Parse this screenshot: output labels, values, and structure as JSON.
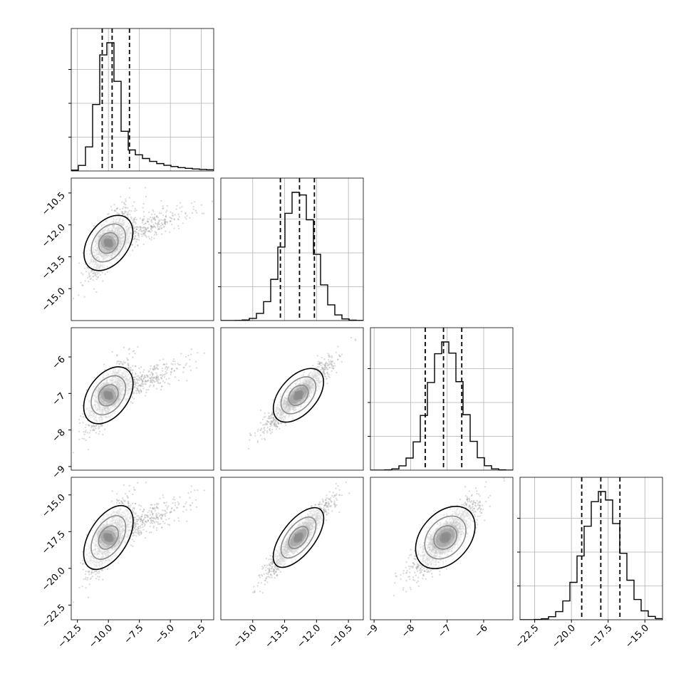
{
  "chart_data": {
    "type": "corner",
    "grid": true,
    "parameters": [
      {
        "range": [
          -13.0,
          -1.5
        ],
        "ticks": [
          -12.5,
          -10.0,
          -7.5,
          -5.0,
          -2.5
        ],
        "tick_labels": [
          "-12.5",
          "-10.0",
          "-7.5",
          "-5.0",
          "-2.5"
        ],
        "quantiles": [
          -10.5,
          -9.7,
          -8.3
        ],
        "peak": -10.0,
        "width": 0.85,
        "tail": 0.22
      },
      {
        "range": [
          -16.5,
          -9.8
        ],
        "ticks": [
          -15.0,
          -13.5,
          -12.0,
          -10.5
        ],
        "tick_labels": [
          "-15.0",
          "-13.5",
          "-12.0",
          "-10.5"
        ],
        "quantiles": [
          -13.7,
          -12.8,
          -12.1
        ],
        "peak": -12.85,
        "width": 0.75,
        "tail": 0.0
      },
      {
        "range": [
          -9.1,
          -5.2
        ],
        "ticks": [
          -9,
          -8,
          -7,
          -6
        ],
        "tick_labels": [
          "-9",
          "-8",
          "-7",
          "-6"
        ],
        "quantiles": [
          -7.6,
          -7.1,
          -6.6
        ],
        "peak": -7.05,
        "width": 0.45,
        "tail": 0.0
      },
      {
        "range": [
          -23.5,
          -13.8
        ],
        "ticks": [
          -22.5,
          -20.0,
          -17.5,
          -15.0
        ],
        "tick_labels": [
          "-22.5",
          "-20.0",
          "-17.5",
          "-15.0"
        ],
        "quantiles": [
          -19.3,
          -18.0,
          -16.7
        ],
        "peak": -17.9,
        "width": 1.25,
        "tail": 0.0
      }
    ],
    "correlations": [
      {
        "i": 1,
        "j": 0,
        "corr": 0.75
      },
      {
        "i": 2,
        "j": 0,
        "corr": 0.75
      },
      {
        "i": 2,
        "j": 1,
        "corr": 0.92
      },
      {
        "i": 3,
        "j": 0,
        "corr": 0.78
      },
      {
        "i": 3,
        "j": 1,
        "corr": 0.94
      },
      {
        "i": 3,
        "j": 2,
        "corr": 0.85
      }
    ],
    "colors": {
      "hist": "#000000",
      "quantile": "#000000",
      "points": "#9a9a9a",
      "density": "#000000",
      "grid": "#b0b0b0"
    }
  }
}
